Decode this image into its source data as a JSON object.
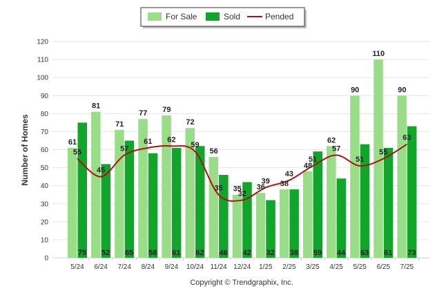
{
  "chart_data": {
    "type": "bar",
    "categories": [
      "5/24",
      "6/24",
      "7/24",
      "8/24",
      "9/24",
      "10/24",
      "11/24",
      "12/24",
      "1/25",
      "2/25",
      "3/25",
      "4/25",
      "5/25",
      "6/25",
      "7/25"
    ],
    "series": [
      {
        "name": "For Sale",
        "kind": "bar",
        "color": "#99dd88",
        "values": [
          61,
          81,
          71,
          77,
          79,
          72,
          56,
          35,
          36,
          38,
          48,
          62,
          90,
          110,
          90
        ]
      },
      {
        "name": "Sold",
        "kind": "bar",
        "color": "#11a52c",
        "values": [
          75,
          52,
          65,
          58,
          61,
          62,
          46,
          42,
          32,
          38,
          59,
          44,
          63,
          61,
          73
        ]
      },
      {
        "name": "Pended",
        "kind": "line",
        "color": "#b01010",
        "values": [
          55,
          45,
          57,
          61,
          62,
          59,
          35,
          32,
          39,
          43,
          51,
          57,
          51,
          55,
          63
        ]
      }
    ],
    "xlabel": "",
    "ylabel": "Number of Homes",
    "ylim": [
      0,
      120
    ],
    "yticks": [
      0,
      10,
      20,
      30,
      40,
      50,
      60,
      70,
      80,
      90,
      100,
      110,
      120
    ],
    "grid": true,
    "legend_position": "top-center",
    "footer": "Copyright © Trendgraphix, Inc."
  }
}
